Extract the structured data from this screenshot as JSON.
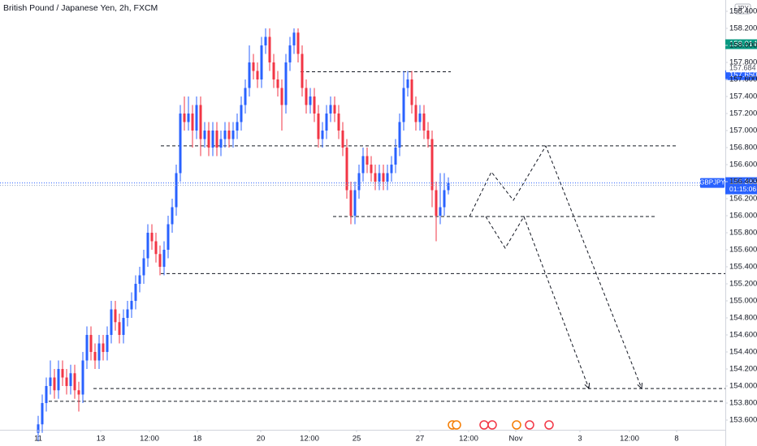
{
  "chart_data": {
    "type": "candlestick",
    "title": "British Pound / Japanese Yen, 2h, FXCM",
    "currency": "JPY",
    "up_color": "#2962ff",
    "down_color": "#f23645",
    "grid": false,
    "xlim": [
      -9.4,
      169.2
    ],
    "ylim": [
      153.486,
      158.533
    ],
    "xticks": [
      {
        "value": 0,
        "label": "11"
      },
      {
        "value": 15.4,
        "label": "13"
      },
      {
        "value": 27.4,
        "label": "12:00"
      },
      {
        "value": 39.2,
        "label": "18"
      },
      {
        "value": 54.8,
        "label": "20"
      },
      {
        "value": 66.8,
        "label": "12:00"
      },
      {
        "value": 78.4,
        "label": "25"
      },
      {
        "value": 94,
        "label": "27"
      },
      {
        "value": 106,
        "label": "12:00"
      },
      {
        "value": 117.6,
        "label": "Nov"
      },
      {
        "value": 133.4,
        "label": "3"
      },
      {
        "value": 145.6,
        "label": "12:00"
      },
      {
        "value": 157.2,
        "label": "8"
      }
    ],
    "yticks": [
      {
        "value": 153.6,
        "label": "153.600"
      },
      {
        "value": 153.8,
        "label": "153.800"
      },
      {
        "value": 154.0,
        "label": "154.000"
      },
      {
        "value": 154.2,
        "label": "154.200"
      },
      {
        "value": 154.4,
        "label": "154.400"
      },
      {
        "value": 154.6,
        "label": "154.600"
      },
      {
        "value": 154.8,
        "label": "154.800"
      },
      {
        "value": 155.0,
        "label": "155.000"
      },
      {
        "value": 155.2,
        "label": "155.200"
      },
      {
        "value": 155.4,
        "label": "155.400"
      },
      {
        "value": 155.6,
        "label": "155.600"
      },
      {
        "value": 155.8,
        "label": "155.800"
      },
      {
        "value": 156.0,
        "label": "156.000"
      },
      {
        "value": 156.2,
        "label": "156.200"
      },
      {
        "value": 156.4,
        "label": "156.400"
      },
      {
        "value": 156.6,
        "label": "156.600"
      },
      {
        "value": 156.8,
        "label": "156.800"
      },
      {
        "value": 157.0,
        "label": "157.000"
      },
      {
        "value": 157.2,
        "label": "157.200"
      },
      {
        "value": 157.4,
        "label": "157.400"
      },
      {
        "value": 157.6,
        "label": "157.600"
      },
      {
        "value": 157.8,
        "label": "157.800"
      },
      {
        "value": 158.0,
        "label": "158.000"
      },
      {
        "value": 158.2,
        "label": "158.200"
      },
      {
        "value": 158.4,
        "label": "158.400"
      }
    ],
    "series": [
      {
        "name": "GBPJPY",
        "candles": [
          [
            153.45,
            153.65,
            153.35,
            153.55
          ],
          [
            153.55,
            153.9,
            153.45,
            153.8
          ],
          [
            153.8,
            154.1,
            153.7,
            154.0
          ],
          [
            154.0,
            154.3,
            153.9,
            154.1
          ],
          [
            154.1,
            154.2,
            153.85,
            153.95
          ],
          [
            153.95,
            154.3,
            153.85,
            154.2
          ],
          [
            154.2,
            154.3,
            154.0,
            154.1
          ],
          [
            154.1,
            154.2,
            153.9,
            154.0
          ],
          [
            154.0,
            154.25,
            153.9,
            154.15
          ],
          [
            154.15,
            154.25,
            153.85,
            153.95
          ],
          [
            153.95,
            154.05,
            153.7,
            153.9
          ],
          [
            153.9,
            154.4,
            153.8,
            154.3
          ],
          [
            154.3,
            154.7,
            154.2,
            154.6
          ],
          [
            154.6,
            154.7,
            154.3,
            154.4
          ],
          [
            154.4,
            154.5,
            154.2,
            154.3
          ],
          [
            154.3,
            154.6,
            154.2,
            154.5
          ],
          [
            154.5,
            154.6,
            154.3,
            154.4
          ],
          [
            154.4,
            154.7,
            154.3,
            154.6
          ],
          [
            154.6,
            155.0,
            154.5,
            154.9
          ],
          [
            154.9,
            155.0,
            154.65,
            154.75
          ],
          [
            154.75,
            154.85,
            154.5,
            154.6
          ],
          [
            154.6,
            154.9,
            154.5,
            154.8
          ],
          [
            154.8,
            155.0,
            154.7,
            154.9
          ],
          [
            154.9,
            155.1,
            154.8,
            155.0
          ],
          [
            155.0,
            155.3,
            154.9,
            155.2
          ],
          [
            155.2,
            155.4,
            155.1,
            155.3
          ],
          [
            155.3,
            155.6,
            155.2,
            155.5
          ],
          [
            155.5,
            155.9,
            155.4,
            155.8
          ],
          [
            155.8,
            155.9,
            155.6,
            155.7
          ],
          [
            155.7,
            155.8,
            155.45,
            155.55
          ],
          [
            155.55,
            155.65,
            155.3,
            155.4
          ],
          [
            155.4,
            155.7,
            155.3,
            155.6
          ],
          [
            155.6,
            156.0,
            155.5,
            155.9
          ],
          [
            155.9,
            156.2,
            155.8,
            156.1
          ],
          [
            156.1,
            156.6,
            156.0,
            156.5
          ],
          [
            156.5,
            157.3,
            156.4,
            157.2
          ],
          [
            157.2,
            157.4,
            157.0,
            157.1
          ],
          [
            157.1,
            157.4,
            157.0,
            157.2
          ],
          [
            157.2,
            157.3,
            156.8,
            157.0
          ],
          [
            157.0,
            157.4,
            156.9,
            157.3
          ],
          [
            157.3,
            157.4,
            156.7,
            156.9
          ],
          [
            156.9,
            157.1,
            156.8,
            157.0
          ],
          [
            157.0,
            157.1,
            156.7,
            156.8
          ],
          [
            156.8,
            157.1,
            156.7,
            157.0
          ],
          [
            157.0,
            157.1,
            156.7,
            156.8
          ],
          [
            156.8,
            157.0,
            156.7,
            156.9
          ],
          [
            156.9,
            157.1,
            156.8,
            157.0
          ],
          [
            157.0,
            157.1,
            156.8,
            156.9
          ],
          [
            156.9,
            157.1,
            156.8,
            157.0
          ],
          [
            157.0,
            157.2,
            156.9,
            157.1
          ],
          [
            157.1,
            157.4,
            157.0,
            157.3
          ],
          [
            157.3,
            157.6,
            157.2,
            157.5
          ],
          [
            157.5,
            158.0,
            157.4,
            157.8
          ],
          [
            157.8,
            157.9,
            157.6,
            157.7
          ],
          [
            157.7,
            157.8,
            157.5,
            157.6
          ],
          [
            157.6,
            158.1,
            157.5,
            158.0
          ],
          [
            158.0,
            158.2,
            157.9,
            158.1
          ],
          [
            158.1,
            158.2,
            157.7,
            157.8
          ],
          [
            157.8,
            157.9,
            157.5,
            157.6
          ],
          [
            157.6,
            157.7,
            157.4,
            157.5
          ],
          [
            157.5,
            157.6,
            157.0,
            157.3
          ],
          [
            157.3,
            157.9,
            157.2,
            157.8
          ],
          [
            157.8,
            158.1,
            157.7,
            158.0
          ],
          [
            158.0,
            158.2,
            157.9,
            158.15
          ],
          [
            158.15,
            158.2,
            157.8,
            157.9
          ],
          [
            157.9,
            158.0,
            157.4,
            157.5
          ],
          [
            157.5,
            157.6,
            157.2,
            157.3
          ],
          [
            157.3,
            157.5,
            157.2,
            157.4
          ],
          [
            157.4,
            157.5,
            157.1,
            157.2
          ],
          [
            157.2,
            157.3,
            156.8,
            156.9
          ],
          [
            156.9,
            157.1,
            156.8,
            157.0
          ],
          [
            157.0,
            157.3,
            156.9,
            157.2
          ],
          [
            157.2,
            157.4,
            157.1,
            157.3
          ],
          [
            157.3,
            157.4,
            157.1,
            157.2
          ],
          [
            157.2,
            157.3,
            156.9,
            157.0
          ],
          [
            157.0,
            157.1,
            156.7,
            156.8
          ],
          [
            156.8,
            156.9,
            156.2,
            156.3
          ],
          [
            156.3,
            156.4,
            155.9,
            156.0
          ],
          [
            156.0,
            156.4,
            155.9,
            156.3
          ],
          [
            156.3,
            156.6,
            156.2,
            156.5
          ],
          [
            156.5,
            156.8,
            156.4,
            156.7
          ],
          [
            156.7,
            156.8,
            156.5,
            156.6
          ],
          [
            156.6,
            156.7,
            156.4,
            156.5
          ],
          [
            156.5,
            156.6,
            156.3,
            156.4
          ],
          [
            156.4,
            156.6,
            156.3,
            156.5
          ],
          [
            156.5,
            156.6,
            156.3,
            156.4
          ],
          [
            156.4,
            156.6,
            156.3,
            156.5
          ],
          [
            156.5,
            156.7,
            156.4,
            156.6
          ],
          [
            156.6,
            156.9,
            156.5,
            156.8
          ],
          [
            156.8,
            157.2,
            156.7,
            157.1
          ],
          [
            157.1,
            157.7,
            157.0,
            157.5
          ],
          [
            157.5,
            157.7,
            157.4,
            157.6
          ],
          [
            157.6,
            157.7,
            157.2,
            157.3
          ],
          [
            157.3,
            157.4,
            157.0,
            157.1
          ],
          [
            157.1,
            157.3,
            157.0,
            157.2
          ],
          [
            157.2,
            157.3,
            156.9,
            157.0
          ],
          [
            157.0,
            157.1,
            156.8,
            156.9
          ],
          [
            156.9,
            157.0,
            156.1,
            156.3
          ],
          [
            156.3,
            156.4,
            155.7,
            156.0
          ],
          [
            156.0,
            156.5,
            155.9,
            156.1
          ],
          [
            156.1,
            156.5,
            156.0,
            156.3
          ],
          [
            156.3,
            156.45,
            156.25,
            156.385
          ]
        ]
      }
    ],
    "levels": [
      {
        "y": 157.69,
        "x": [
          64.6,
          101.6
        ]
      },
      {
        "y": 156.82,
        "x": [
          30.2,
          157.6
        ]
      },
      {
        "y": 155.99,
        "x": [
          72.6,
          152.2
        ]
      },
      {
        "y": 155.32,
        "x": [
          30.2,
          169.2
        ]
      },
      {
        "y": 153.97,
        "x": [
          13.6,
          169.2
        ]
      },
      {
        "y": 153.82,
        "x": [
          2.6,
          169.2
        ]
      }
    ],
    "projections": [
      {
        "x": [
          106.2,
          111.6,
          117,
          125,
          148.6
        ],
        "y": [
          155.99,
          156.514,
          156.181,
          156.819,
          153.971
        ]
      },
      {
        "x": [
          110.2,
          115,
          119.6,
          135.6
        ],
        "y": [
          155.99,
          155.619,
          155.99,
          153.971
        ]
      }
    ],
    "price_labels": [
      {
        "value": 158.014,
        "label": "158.014",
        "color": "#089981"
      },
      {
        "value": 157.65,
        "label": "157.650",
        "color": "#2962ff"
      }
    ],
    "high_label": {
      "value": 157.684,
      "label": "157.684"
    },
    "current": {
      "symbol": "GBPJPY",
      "value": 156.385,
      "label": "156.385",
      "countdown": "01:15:06",
      "color": "#2962ff"
    }
  }
}
